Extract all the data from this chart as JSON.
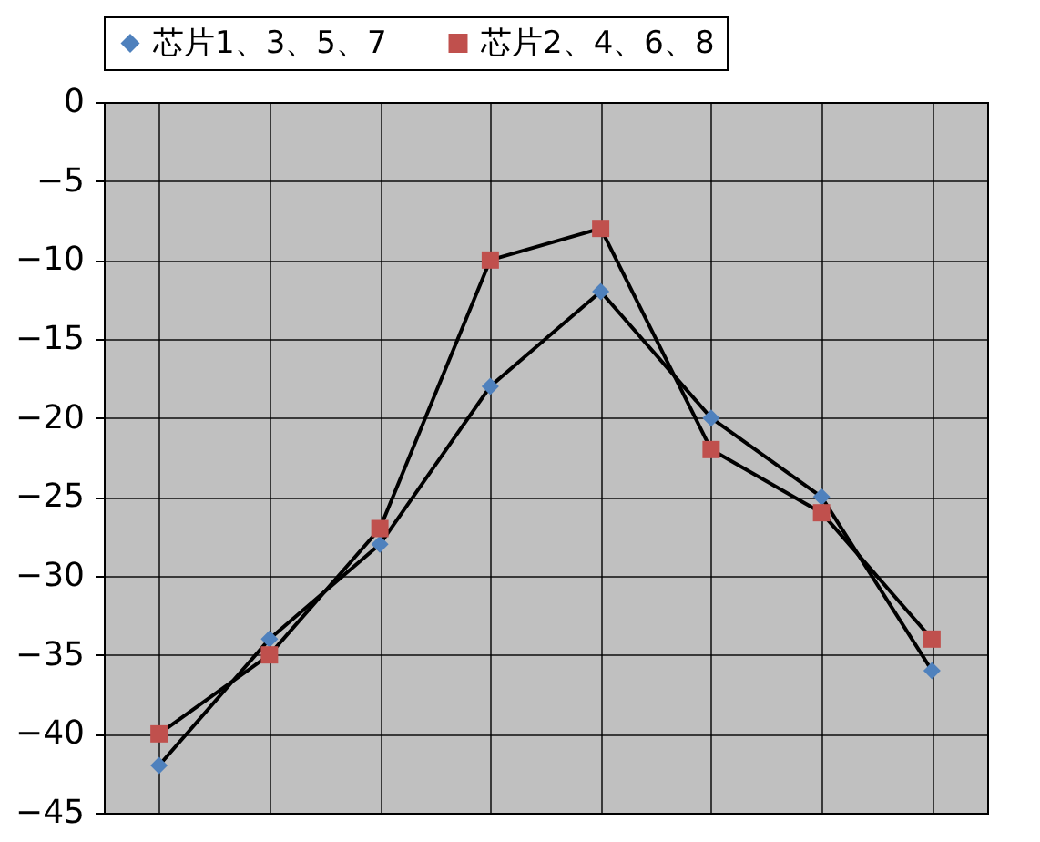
{
  "chart_data": {
    "type": "line",
    "categories": [
      null,
      null,
      null,
      null,
      null,
      null,
      null,
      null
    ],
    "series": [
      {
        "name": "芯片1、3、5、7",
        "color": "#4f81bd",
        "marker": "diamond",
        "values": [
          -42,
          -34,
          -28,
          -18,
          -12,
          -20,
          -25,
          -36
        ]
      },
      {
        "name": "芯片2、4、6、8",
        "color": "#c0504d",
        "marker": "square",
        "values": [
          -40,
          -35,
          -27,
          -10,
          -8,
          -22,
          -26,
          -34
        ]
      }
    ],
    "ylim": [
      -45,
      0
    ],
    "yticks": [
      -45,
      -40,
      -35,
      -30,
      -25,
      -20,
      -15,
      -10,
      -5,
      0
    ],
    "grid": true,
    "legend": "top",
    "tick_labels": "y"
  }
}
